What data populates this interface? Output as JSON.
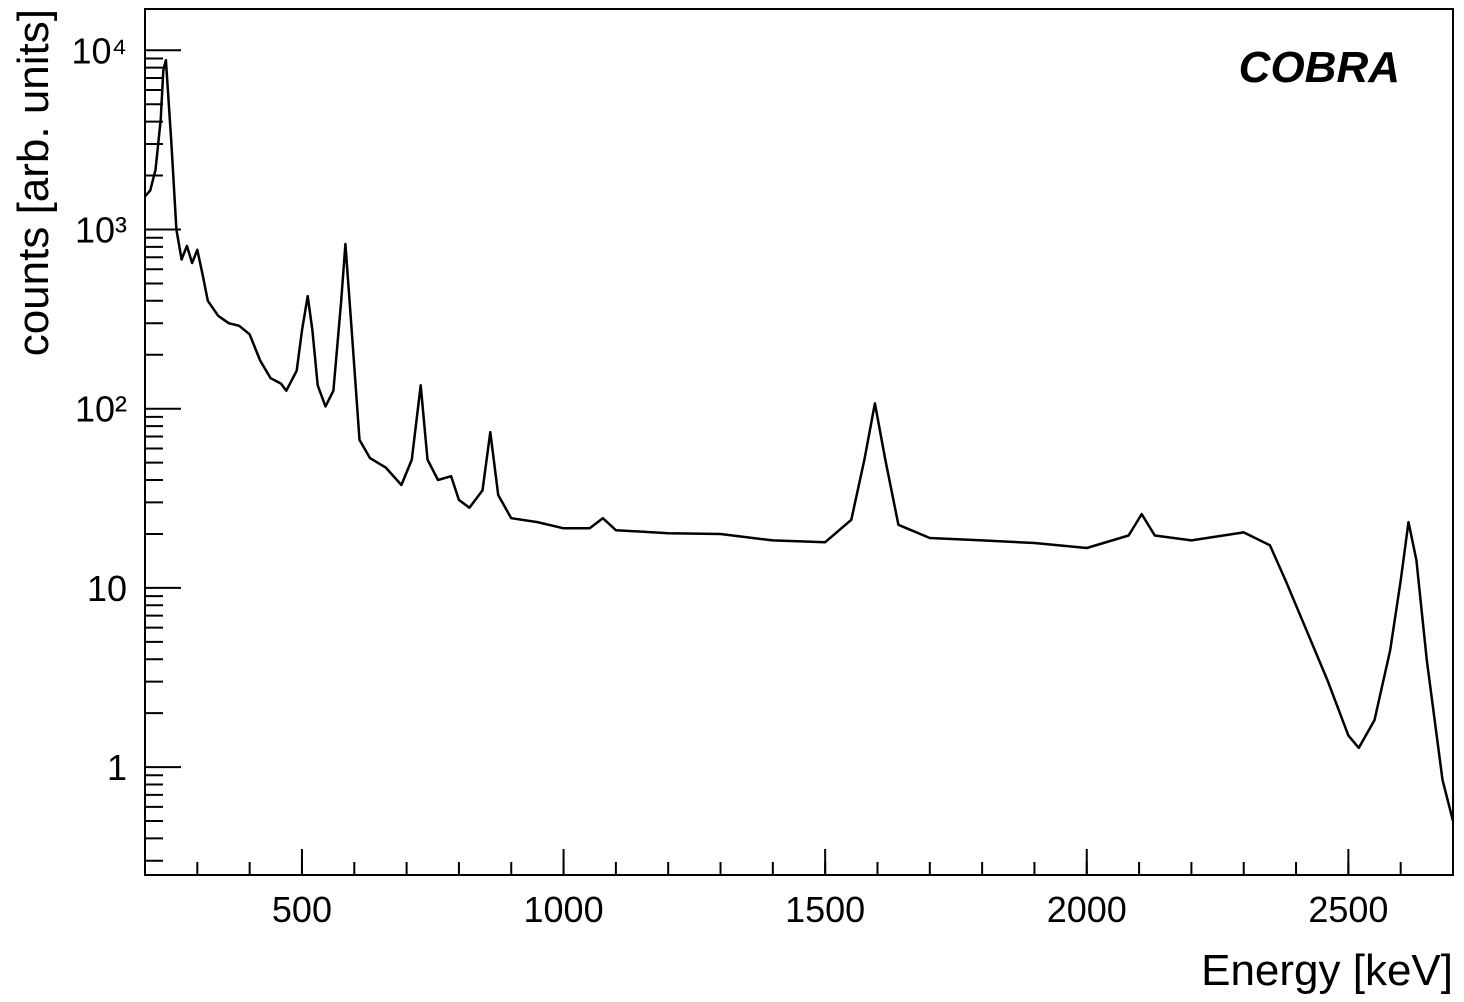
{
  "chart_data": {
    "type": "line",
    "title": "COBRA",
    "xlabel": "Energy [keV]",
    "ylabel": "counts [arb. units]",
    "color": "#000000",
    "log_y": true,
    "xlim": [
      200,
      2700
    ],
    "xticks": [
      500,
      1000,
      1500,
      2000,
      2500
    ],
    "ylim": [
      0.25,
      17000
    ],
    "yticks": [
      1,
      10,
      {
        "value": 100,
        "label": "10²"
      },
      {
        "value": 1000,
        "label": "10³"
      },
      {
        "value": 10000,
        "label": "10⁴"
      }
    ],
    "x": [
      200,
      210,
      220,
      230,
      235,
      240,
      250,
      260,
      270,
      280,
      290,
      300,
      310,
      320,
      340,
      360,
      380,
      400,
      420,
      440,
      460,
      470,
      490,
      500,
      511,
      520,
      530,
      545,
      560,
      575,
      583,
      595,
      610,
      630,
      660,
      690,
      710,
      727,
      740,
      760,
      785,
      800,
      820,
      845,
      860,
      875,
      900,
      950,
      1000,
      1050,
      1075,
      1100,
      1200,
      1300,
      1400,
      1500,
      1550,
      1575,
      1595,
      1615,
      1640,
      1700,
      1800,
      1900,
      2000,
      2080,
      2105,
      2130,
      2200,
      2300,
      2350,
      2380,
      2420,
      2460,
      2500,
      2520,
      2550,
      2580,
      2600,
      2615,
      2630,
      2650,
      2680,
      2700
    ],
    "values": [
      1530,
      1650,
      2150,
      4100,
      7700,
      8800,
      3150,
      1000,
      680,
      810,
      650,
      770,
      560,
      400,
      330,
      300,
      290,
      260,
      186,
      148,
      138,
      126,
      163,
      274,
      425,
      274,
      135,
      103,
      126,
      400,
      830,
      274,
      67,
      53,
      47,
      37.5,
      52,
      135,
      52,
      40,
      42,
      31,
      28,
      35,
      74,
      33,
      24.5,
      23.3,
      21.5,
      21.5,
      24.5,
      21,
      20.2,
      20,
      18.4,
      18,
      24,
      52,
      107,
      52,
      22.5,
      19,
      18.4,
      17.8,
      16.7,
      19.6,
      25.8,
      19.6,
      18.4,
      20.4,
      17.3,
      11,
      5.8,
      3.06,
      1.5,
      1.28,
      1.83,
      4.5,
      11,
      23.3,
      14.3,
      3.95,
      0.85,
      0.5
    ]
  }
}
